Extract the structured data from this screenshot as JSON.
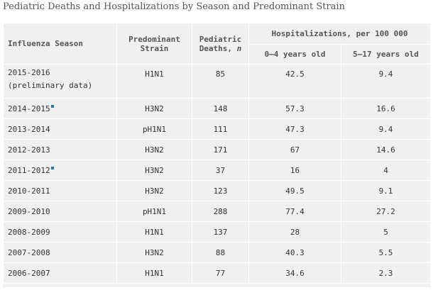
{
  "caption": "Pediatric Deaths and Hospitalizations by Season and Predominant Strain",
  "headers": {
    "season": "Influenza Season",
    "strain_line1": "Predominant",
    "strain_line2": "Strain",
    "deaths_line1": "Pediatric",
    "deaths_line2": "Deaths,",
    "deaths_n": "n",
    "hosp": "Hospitalizations, per 100 000",
    "age1": "0–4 years old",
    "age2": "5–17 years old"
  },
  "rows": [
    {
      "season": "2015-2016",
      "season_note": "(preliminary data)",
      "strain": "H1N1",
      "deaths": "85",
      "hosp_0_4": "42.5",
      "hosp_5_17": "9.4",
      "footnote": false
    },
    {
      "season": "2014-2015",
      "season_note": "",
      "strain": "H3N2",
      "deaths": "148",
      "hosp_0_4": "57.3",
      "hosp_5_17": "16.6",
      "footnote": true
    },
    {
      "season": "2013-2014",
      "season_note": "",
      "strain": "pH1N1",
      "deaths": "111",
      "hosp_0_4": "47.3",
      "hosp_5_17": "9.4",
      "footnote": false
    },
    {
      "season": "2012-2013",
      "season_note": "",
      "strain": "H3N2",
      "deaths": "171",
      "hosp_0_4": "67",
      "hosp_5_17": "14.6",
      "footnote": false
    },
    {
      "season": "2011-2012",
      "season_note": "",
      "strain": "H3N2",
      "deaths": "37",
      "hosp_0_4": "16",
      "hosp_5_17": "4",
      "footnote": true
    },
    {
      "season": "2010-2011",
      "season_note": "",
      "strain": "H3N2",
      "deaths": "123",
      "hosp_0_4": "49.5",
      "hosp_5_17": "9.1",
      "footnote": false
    },
    {
      "season": "2009-2010",
      "season_note": "",
      "strain": "pH1N1",
      "deaths": "288",
      "hosp_0_4": "77.4",
      "hosp_5_17": "27.2",
      "footnote": false
    },
    {
      "season": "2008-2009",
      "season_note": "",
      "strain": "H1N1",
      "deaths": "137",
      "hosp_0_4": "28",
      "hosp_5_17": "5",
      "footnote": false
    },
    {
      "season": "2007-2008",
      "season_note": "",
      "strain": "H3N2",
      "deaths": "88",
      "hosp_0_4": "40.3",
      "hosp_5_17": "5.5",
      "footnote": false
    },
    {
      "season": "2006-2007",
      "season_note": "",
      "strain": "H1N1",
      "deaths": "77",
      "hosp_0_4": "34.6",
      "hosp_5_17": "2.3",
      "footnote": false
    }
  ],
  "colors": {
    "cell_background": "#f0f0f0",
    "grid_lines": "#ffffff",
    "footnote_marker": "#2a78b5"
  }
}
